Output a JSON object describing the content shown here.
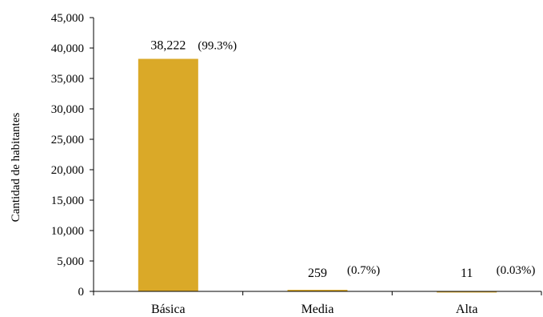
{
  "chart_data": {
    "type": "bar",
    "categories": [
      "Básica",
      "Media",
      "Alta"
    ],
    "values": [
      38222,
      259,
      11
    ],
    "value_labels": [
      "38,222",
      "259",
      "11"
    ],
    "percent_labels": [
      "(99.3%)",
      "(0.7%)",
      "(0.03%)"
    ],
    "title": "",
    "xlabel": "",
    "ylabel": "Cantidad de habitantes",
    "ylim": [
      0,
      45000
    ],
    "yticks": [
      "0",
      "5,000",
      "10,000",
      "15,000",
      "20,000",
      "25,000",
      "30,000",
      "35,000",
      "40,000",
      "45,000"
    ],
    "grid": false,
    "legend": "none",
    "colors": {
      "bar": "#DAA928",
      "axis": "#000000"
    }
  }
}
